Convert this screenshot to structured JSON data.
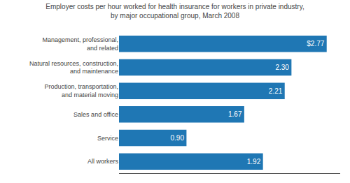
{
  "chart_data": {
    "type": "bar",
    "orientation": "horizontal",
    "title": "Employer costs per hour worked for health insurance for workers in private industry,\nby major occupational group, March 2008",
    "categories": [
      "Management, professional,\nand related",
      "Natural resources, construction,\nand maintenance",
      "Production, transportation,\nand material moving",
      "Sales and office",
      "Service",
      "All workers"
    ],
    "values": [
      2.77,
      2.3,
      2.21,
      1.67,
      0.9,
      1.92
    ],
    "value_labels": [
      "$2.77",
      "2.30",
      "2.21",
      "1.67",
      "0.90",
      "1.92"
    ],
    "data_labels": true,
    "xlim": [
      0,
      2.95
    ],
    "tick_labels": "y",
    "grid": false
  }
}
